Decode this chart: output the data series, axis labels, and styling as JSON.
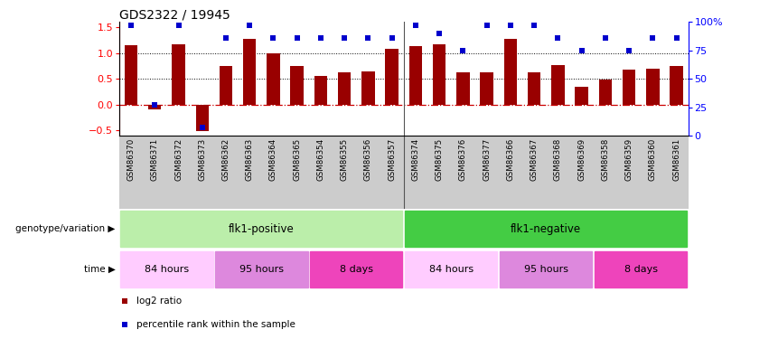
{
  "title": "GDS2322 / 19945",
  "samples": [
    "GSM86370",
    "GSM86371",
    "GSM86372",
    "GSM86373",
    "GSM86362",
    "GSM86363",
    "GSM86364",
    "GSM86365",
    "GSM86354",
    "GSM86355",
    "GSM86356",
    "GSM86357",
    "GSM86374",
    "GSM86375",
    "GSM86376",
    "GSM86377",
    "GSM86366",
    "GSM86367",
    "GSM86368",
    "GSM86369",
    "GSM86358",
    "GSM86359",
    "GSM86360",
    "GSM86361"
  ],
  "log2_ratio": [
    1.15,
    -0.1,
    1.17,
    -0.52,
    0.75,
    1.27,
    0.99,
    0.75,
    0.55,
    0.63,
    0.65,
    1.08,
    1.13,
    1.17,
    0.62,
    0.62,
    1.27,
    0.63,
    0.77,
    0.35,
    0.48,
    0.68,
    0.7,
    0.74
  ],
  "percentile_rank": [
    97,
    27,
    97,
    7,
    86,
    97,
    86,
    86,
    86,
    86,
    86,
    86,
    97,
    90,
    75,
    97,
    97,
    97,
    86,
    75,
    86,
    75,
    86,
    86
  ],
  "genotype_groups": [
    {
      "label": "flk1-positive",
      "start": 0,
      "end": 12,
      "color": "#bbeeaa"
    },
    {
      "label": "flk1-negative",
      "start": 12,
      "end": 24,
      "color": "#44cc44"
    }
  ],
  "time_groups": [
    {
      "label": "84 hours",
      "start": 0,
      "end": 4,
      "color": "#ffccff"
    },
    {
      "label": "95 hours",
      "start": 4,
      "end": 8,
      "color": "#dd88dd"
    },
    {
      "label": "8 days",
      "start": 8,
      "end": 12,
      "color": "#ee44bb"
    },
    {
      "label": "84 hours",
      "start": 12,
      "end": 16,
      "color": "#ffccff"
    },
    {
      "label": "95 hours",
      "start": 16,
      "end": 20,
      "color": "#dd88dd"
    },
    {
      "label": "8 days",
      "start": 20,
      "end": 24,
      "color": "#ee44bb"
    }
  ],
  "bar_color": "#990000",
  "dot_color": "#0000cc",
  "left_ylim": [
    -0.6,
    1.6
  ],
  "right_ylim": [
    0,
    100
  ],
  "left_yticks": [
    -0.5,
    0.0,
    0.5,
    1.0,
    1.5
  ],
  "right_yticks": [
    0,
    25,
    50,
    75,
    100
  ],
  "hline_color": "#cc0000",
  "dotted_lines": [
    0.5,
    1.0
  ],
  "xlabel_bg": "#cccccc",
  "legend_labels": [
    "log2 ratio",
    "percentile rank within the sample"
  ],
  "legend_colors": [
    "#990000",
    "#0000cc"
  ],
  "row_label_geno": "genotype/variation",
  "row_label_time": "time"
}
